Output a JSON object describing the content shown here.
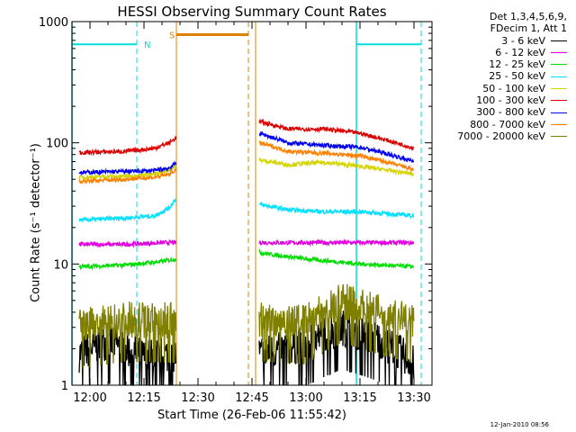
{
  "chart_data": {
    "type": "line",
    "title": "HESSI Observing Summary Count Rates",
    "xlabel": "Start Time (26-Feb-06 11:55:42)",
    "ylabel": "Count Rate (s⁻¹ detector⁻¹)",
    "yscale": "log",
    "ylim": [
      1,
      1000
    ],
    "xlim": [
      "11:55",
      "13:35"
    ],
    "x_ticks": [
      "12:00",
      "12:15",
      "12:30",
      "12:45",
      "13:00",
      "13:15",
      "13:30"
    ],
    "y_ticks": [
      "1",
      "10",
      "100",
      "1000"
    ],
    "legend_header": [
      "Det 1,3,4,5,6,9,",
      "FDecim 1, Att 1"
    ],
    "series": [
      {
        "name": "3 - 6 keV",
        "color": "#000000",
        "segments": [
          {
            "x": [
              "11:57",
              "12:05",
              "12:15",
              "12:24"
            ],
            "y": [
              1.8,
              2.3,
              1.7,
              1.8
            ]
          },
          {
            "x": [
              "12:47",
              "13:00",
              "13:10",
              "13:20",
              "13:30"
            ],
            "y": [
              1.8,
              2.2,
              3.0,
              2.4,
              1.5
            ]
          }
        ]
      },
      {
        "name": "6 - 12 keV",
        "color": "#e000e0",
        "segments": [
          {
            "x": [
              "11:57",
              "12:10",
              "12:20",
              "12:24"
            ],
            "y": [
              14.5,
              14.5,
              15,
              15
            ]
          },
          {
            "x": [
              "12:47",
              "13:00",
              "13:15",
              "13:30"
            ],
            "y": [
              15,
              15,
              15,
              15
            ]
          }
        ]
      },
      {
        "name": "12 - 25 keV",
        "color": "#00dd00",
        "segments": [
          {
            "x": [
              "11:57",
              "12:10",
              "12:20",
              "12:24"
            ],
            "y": [
              9.5,
              9.8,
              10.5,
              11
            ]
          },
          {
            "x": [
              "12:47",
              "12:50",
              "13:00",
              "13:15",
              "13:30"
            ],
            "y": [
              12.5,
              12,
              11,
              10,
              9.5
            ]
          }
        ]
      },
      {
        "name": "25 - 50 keV",
        "color": "#00e0ff",
        "segments": [
          {
            "x": [
              "11:57",
              "12:10",
              "12:18",
              "12:22",
              "12:24"
            ],
            "y": [
              23,
              24,
              25,
              29,
              35
            ]
          },
          {
            "x": [
              "12:47",
              "12:55",
              "13:05",
              "13:15",
              "13:30"
            ],
            "y": [
              31,
              28,
              27,
              27,
              25
            ]
          }
        ]
      },
      {
        "name": "50 - 100 keV",
        "color": "#d4d400",
        "segments": [
          {
            "x": [
              "11:57",
              "12:10",
              "12:18",
              "12:22",
              "12:24"
            ],
            "y": [
              52,
              53,
              55,
              60,
              64
            ]
          },
          {
            "x": [
              "12:47",
              "12:55",
              "13:05",
              "13:15",
              "13:30"
            ],
            "y": [
              72,
              66,
              69,
              64,
              55
            ]
          }
        ]
      },
      {
        "name": "100 - 300 keV",
        "color": "#dd0000",
        "segments": [
          {
            "x": [
              "11:57",
              "12:10",
              "12:18",
              "12:22",
              "12:24"
            ],
            "y": [
              83,
              85,
              90,
              100,
              110
            ]
          },
          {
            "x": [
              "12:47",
              "12:55",
              "13:05",
              "13:15",
              "13:30"
            ],
            "y": [
              150,
              130,
              130,
              120,
              90
            ]
          }
        ]
      },
      {
        "name": "300 - 800 keV",
        "color": "#0000ee",
        "segments": [
          {
            "x": [
              "11:57",
              "12:10",
              "12:18",
              "12:22",
              "12:24"
            ],
            "y": [
              57,
              58,
              59,
              62,
              68
            ]
          },
          {
            "x": [
              "12:47",
              "12:55",
              "13:05",
              "13:15",
              "13:30"
            ],
            "y": [
              120,
              100,
              95,
              92,
              70
            ]
          }
        ]
      },
      {
        "name": "800 - 7000 keV",
        "color": "#ff8000",
        "segments": [
          {
            "x": [
              "11:57",
              "12:10",
              "12:18",
              "12:22",
              "12:24"
            ],
            "y": [
              48,
              50,
              52,
              55,
              60
            ]
          },
          {
            "x": [
              "12:47",
              "12:55",
              "13:05",
              "13:15",
              "13:30"
            ],
            "y": [
              100,
              85,
              82,
              78,
              60
            ]
          }
        ]
      },
      {
        "name": "7000 - 20000 keV",
        "color": "#808000",
        "segments": [
          {
            "x": [
              "11:57",
              "12:10",
              "12:24"
            ],
            "y": [
              3.0,
              3.5,
              3.4
            ]
          },
          {
            "x": [
              "12:47",
              "13:00",
              "13:10",
              "13:20",
              "13:30"
            ],
            "y": [
              3.5,
              3.3,
              5.0,
              4.0,
              3.4
            ]
          }
        ]
      }
    ],
    "annotations": [
      {
        "text": "N",
        "color": "#00dddd"
      },
      {
        "text": "S",
        "color": "#e08000"
      }
    ],
    "timestamp": "12-Jan-2010 08:56",
    "grid": false,
    "legend_position": "top-right"
  }
}
